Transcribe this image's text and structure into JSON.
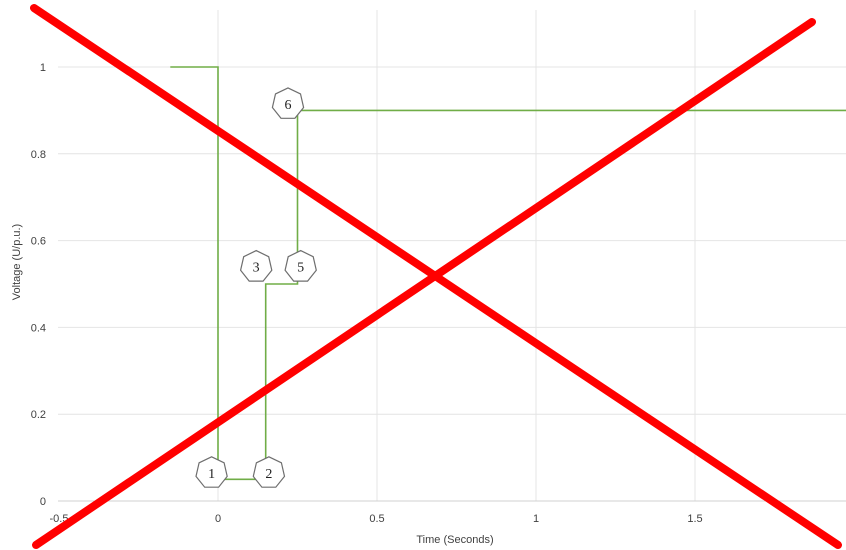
{
  "chart_data": {
    "type": "line",
    "title": "",
    "xlabel": "Time (Seconds)",
    "ylabel": "Voltage (U/p.u.)",
    "xlim": [
      -0.5,
      2.0
    ],
    "ylim": [
      0,
      1.1
    ],
    "grid": true,
    "x_ticks": [
      -0.5,
      0,
      0.5,
      1,
      1.5
    ],
    "x_tick_labels": [
      "-0.5",
      "0",
      "0.5",
      "1",
      "1.5"
    ],
    "y_ticks": [
      0,
      0.2,
      0.4,
      0.6,
      0.8,
      1
    ],
    "y_tick_labels": [
      "0",
      "0.2",
      "0.4",
      "0.6",
      "0.8",
      "1"
    ],
    "series": [
      {
        "color": "#70ad47",
        "x": [
          -0.15,
          0,
          0,
          0.15,
          0.15,
          0.25,
          0.25,
          2.0
        ],
        "y": [
          1,
          1,
          0.05,
          0.05,
          0.5,
          0.5,
          0.9,
          0.9
        ]
      }
    ],
    "annotations": [
      {
        "label": "1",
        "x": -0.02,
        "y": 0.065
      },
      {
        "label": "2",
        "x": 0.16,
        "y": 0.065
      },
      {
        "label": "3",
        "x": 0.12,
        "y": 0.54
      },
      {
        "label": "5",
        "x": 0.26,
        "y": 0.54
      },
      {
        "label": "6",
        "x": 0.22,
        "y": 0.915
      }
    ],
    "cross_color": "#ff0000"
  }
}
